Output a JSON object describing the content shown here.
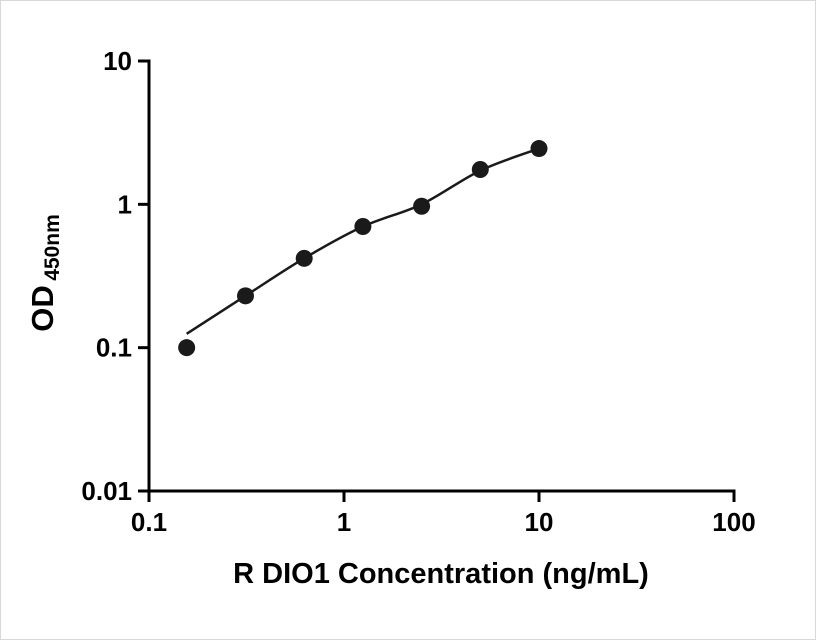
{
  "chart_data": {
    "type": "scatter",
    "title": "",
    "xlabel": "R DIO1 Concentration (ng/mL)",
    "ylabel_main": "OD",
    "ylabel_sub": "450nm",
    "x_scale": "log",
    "y_scale": "log",
    "xlim": [
      0.1,
      100
    ],
    "ylim": [
      0.01,
      10
    ],
    "grid": false,
    "legend": "none",
    "x_ticks": {
      "values": [
        0.1,
        1,
        10,
        100
      ],
      "labels": [
        "0.1",
        "1",
        "10",
        "100"
      ]
    },
    "y_ticks": {
      "values": [
        10,
        1,
        0.1,
        0.01
      ],
      "labels": [
        "10",
        "1",
        "0.1",
        "0.01"
      ]
    },
    "points": {
      "x": [
        0.156,
        0.3125,
        0.625,
        1.25,
        2.5,
        5,
        10
      ],
      "od": [
        0.1,
        0.23,
        0.42,
        0.7,
        0.97,
        1.75,
        2.45
      ]
    },
    "fit_curve": {
      "x": [
        0.156,
        0.3125,
        0.625,
        1.25,
        2.5,
        5,
        10
      ],
      "od": [
        0.125,
        0.23,
        0.42,
        0.7,
        1.0,
        1.72,
        2.45
      ]
    },
    "colors": {
      "points": "#1a1a1a",
      "line": "#1a1a1a",
      "axis": "#000000"
    }
  }
}
